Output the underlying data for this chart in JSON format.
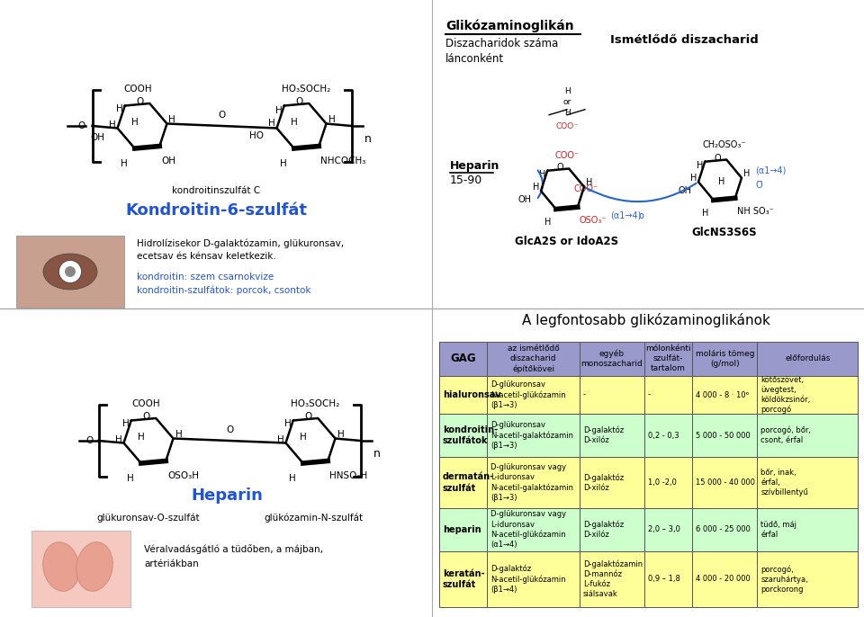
{
  "title": "A legfontosabb glikózaminoglikánok",
  "bg_color": "#ffffff",
  "table": {
    "header_bg": "#9999cc",
    "row_colors": [
      "#ffff99",
      "#ccffcc",
      "#ffff99",
      "#ccffcc",
      "#ffff99"
    ],
    "col_headers": [
      "GAG",
      "az ismétlődő\ndiszacharid\népítőkövei",
      "egyéb\nmonoszacharid",
      "mólonkénti\nszulfát-\ntartalom",
      "moláris tömeg\n(g/mol)",
      "előfordulás"
    ],
    "rows": [
      {
        "gag": "hialuronsav",
        "col2": "D-glükuronsav\nN-acetil-glükózamin\n(β1→3)",
        "col3": "-",
        "col4": "-",
        "col5": "4 000 - 8 · 10⁶",
        "col6": "kötőszövet,\nüvegtest,\nköldökzsinór,\nporcogó"
      },
      {
        "gag": "kondroitin-\nszulfátok",
        "col2": "D-glükuronsav\nN-acetil-galaktózamin\n(β1→3)",
        "col3": "D-galaktóz\nD-xilóz",
        "col4": "0,2 - 0,3",
        "col5": "5 000 - 50 000",
        "col6": "porcogó, bőr,\ncsont, érfal"
      },
      {
        "gag": "dermatán-\nszulfát",
        "col2": "D-glükuronsav vagy\nL-iduronsav\nN-acetil-galaktózamin\n(β1→3)",
        "col3": "D-galaktóz\nD-xilóz",
        "col4": "1,0 -2,0",
        "col5": "15 000 - 40 000",
        "col6": "bőr, inak,\nérfal,\nszívbillentyű"
      },
      {
        "gag": "heparin",
        "col2": "D-glükuronsav vagy\nL-iduronsav\nN-acetil-glükózamin\n(α1→4)",
        "col3": "D-galaktóz\nD-xilóz",
        "col4": "2,0 – 3,0",
        "col5": "6 000 - 25 000",
        "col6": "tüdő, máj\nérfal"
      },
      {
        "gag": "keratán-\nszulfát",
        "col2": "D-galaktóz\nN-acetil-glükózamin\n(β1→4)",
        "col3": "D-galaktózamin\nD-mannóz\nL-fukóz\nsiálsavak",
        "col4": "0,9 – 1,8",
        "col5": "4 000 - 20 000",
        "col6": "porcogó,\nszaruhártya,\nporckorong"
      }
    ]
  }
}
